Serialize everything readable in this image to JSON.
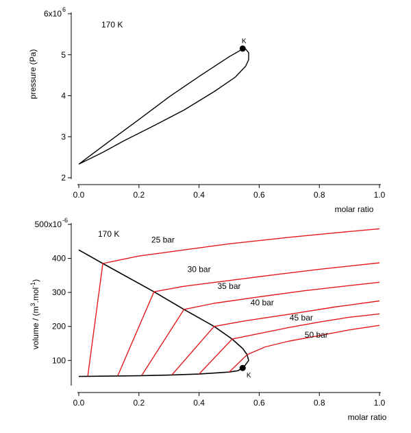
{
  "chart_data": [
    {
      "type": "line",
      "temperature_label": "170 K",
      "ylabel": "pressure (Pa)",
      "xlabel": "molar ratio",
      "xlim": [
        0.0,
        1.0
      ],
      "ylim": [
        2000000,
        6000000
      ],
      "y_axis_unit": "x10^6",
      "x_ticks": [
        "0.0",
        "0.2",
        "0.4",
        "0.6",
        "0.8",
        "1.0"
      ],
      "y_ticks": [
        {
          "value": 2000000,
          "label": "2"
        },
        {
          "value": 3000000,
          "label": "3"
        },
        {
          "value": 4000000,
          "label": "4"
        },
        {
          "value": 5000000,
          "label": "5"
        },
        {
          "value": 6000000,
          "label": "6x10"
        }
      ],
      "y_top_exponent": "6",
      "critical_point": {
        "label": "K",
        "x": 0.545,
        "y": 5150000
      },
      "series": [
        {
          "color": "#000000",
          "x": [
            0.0,
            0.1,
            0.2,
            0.3,
            0.4,
            0.5,
            0.54,
            0.555,
            0.565,
            0.565,
            0.555,
            0.52,
            0.45,
            0.35,
            0.25,
            0.15,
            0.08,
            0.0
          ],
          "y": [
            2330000,
            2880000,
            3420000,
            3970000,
            4470000,
            4950000,
            5120000,
            5140000,
            5050000,
            4880000,
            4720000,
            4450000,
            4100000,
            3650000,
            3270000,
            2900000,
            2620000,
            2330000
          ]
        }
      ]
    },
    {
      "type": "line",
      "temperature_label": "170 K",
      "ylabel": "volume / (m3.mol-1)",
      "ylabel_parts": {
        "base": "volume / (m",
        "exp1": "3",
        "mid": ".mol",
        "exp2": "-1",
        "end": ")"
      },
      "xlabel": "molar ratio",
      "xlim": [
        0.0,
        1.0
      ],
      "ylim": [
        30,
        500
      ],
      "y_axis_unit": "x10^-6",
      "x_ticks": [
        "0.0",
        "0.2",
        "0.4",
        "0.6",
        "0.8",
        "1.0"
      ],
      "y_ticks": [
        {
          "value": 100,
          "label": "100"
        },
        {
          "value": 200,
          "label": "200"
        },
        {
          "value": 300,
          "label": "300"
        },
        {
          "value": 400,
          "label": "400"
        },
        {
          "value": 500,
          "label": "500x10"
        }
      ],
      "y_top_exponent": "-6",
      "critical_point": {
        "label": "K",
        "x": 0.545,
        "y": 78
      },
      "envelope": {
        "color": "#000000",
        "x": [
          0.0,
          0.08,
          0.25,
          0.35,
          0.45,
          0.51,
          0.545,
          0.56,
          0.565,
          0.55,
          0.53,
          0.5,
          0.4,
          0.3,
          0.2,
          0.1,
          0.0
        ],
        "y": [
          425,
          385,
          302,
          250,
          200,
          163,
          135,
          117,
          100,
          82,
          70,
          66,
          60,
          57,
          55,
          54,
          53
        ]
      },
      "series": [
        {
          "name": "25 bar",
          "color": "#e31a1c",
          "x": [
            0.03,
            0.08,
            0.2,
            0.35,
            0.5,
            0.7,
            0.85,
            1.0
          ],
          "y": [
            55,
            385,
            407,
            425,
            443,
            462,
            475,
            487
          ]
        },
        {
          "name": "30 bar",
          "color": "#e31a1c",
          "x": [
            0.13,
            0.25,
            0.35,
            0.5,
            0.65,
            0.8,
            1.0
          ],
          "y": [
            56,
            302,
            318,
            335,
            352,
            368,
            387
          ]
        },
        {
          "name": "35 bar",
          "color": "#e31a1c",
          "x": [
            0.21,
            0.35,
            0.45,
            0.6,
            0.75,
            0.9,
            1.0
          ],
          "y": [
            57,
            250,
            268,
            287,
            305,
            320,
            330
          ]
        },
        {
          "name": "40 bar",
          "color": "#e31a1c",
          "x": [
            0.31,
            0.45,
            0.55,
            0.7,
            0.85,
            1.0
          ],
          "y": [
            58,
            200,
            216,
            236,
            257,
            275
          ]
        },
        {
          "name": "45 bar",
          "color": "#e31a1c",
          "x": [
            0.4,
            0.51,
            0.6,
            0.7,
            0.8,
            0.9,
            1.0
          ],
          "y": [
            60,
            163,
            179,
            197,
            213,
            227,
            237
          ]
        },
        {
          "name": "50 bar",
          "color": "#e31a1c",
          "x": [
            0.5,
            0.56,
            0.62,
            0.7,
            0.8,
            0.9,
            1.0
          ],
          "y": [
            66,
            117,
            140,
            157,
            173,
            190,
            203
          ]
        }
      ],
      "series_label_positions": [
        {
          "x": 0.28,
          "y": 447
        },
        {
          "x": 0.4,
          "y": 360
        },
        {
          "x": 0.5,
          "y": 310
        },
        {
          "x": 0.61,
          "y": 262
        },
        {
          "x": 0.74,
          "y": 218
        },
        {
          "x": 0.79,
          "y": 167
        }
      ]
    }
  ]
}
